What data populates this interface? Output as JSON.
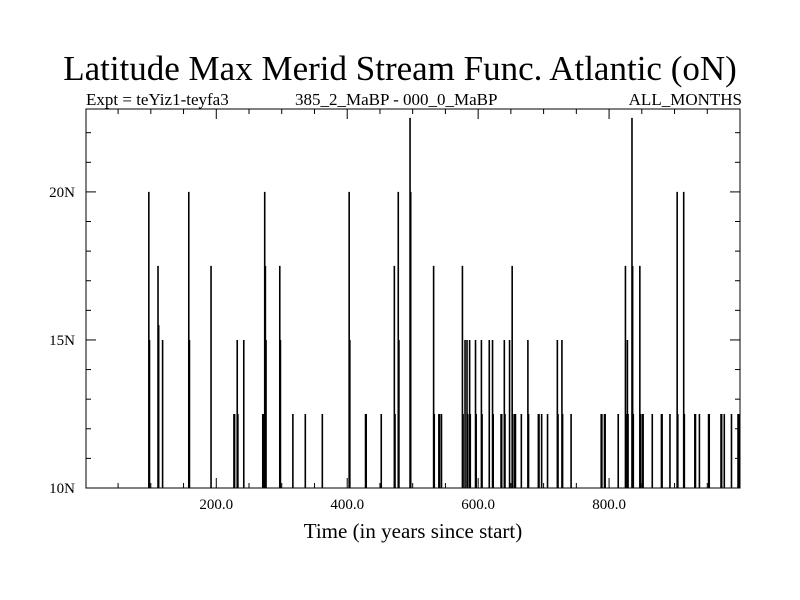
{
  "chart_data": {
    "type": "bar",
    "title": "Latitude Max Merid Stream Func. Atlantic (oN)",
    "subtitle_left": "Expt = teYiz1-teyfa3",
    "subtitle_center": "385_2_MaBP - 000_0_MaBP",
    "subtitle_right": "ALL_MONTHS",
    "xlabel": "Time (in years since start)",
    "ylabel": "",
    "xlim": [
      1,
      1000
    ],
    "ylim": [
      10,
      22.8
    ],
    "baseline": 10,
    "x_major_ticks": [
      200,
      400,
      600,
      800
    ],
    "x_tick_labels": [
      "200.0",
      "400.0",
      "600.0",
      "800.0"
    ],
    "y_major_ticks": [
      10,
      15,
      20
    ],
    "y_tick_labels": [
      "10N",
      "15N",
      "20N"
    ],
    "x_minor_step": 50,
    "y_minor_step": 1,
    "x": [
      97,
      98,
      111,
      112,
      118,
      158,
      159,
      192,
      227,
      228,
      232,
      233,
      242,
      271,
      272,
      274,
      275,
      276,
      297,
      298,
      317,
      336,
      362,
      403,
      404,
      428,
      429,
      452,
      472,
      473,
      478,
      479,
      496,
      497,
      532,
      533,
      540,
      541,
      544,
      576,
      577,
      580,
      583,
      584,
      587,
      588,
      596,
      597,
      605,
      606,
      617,
      622,
      623,
      635,
      636,
      640,
      641,
      648,
      652,
      653,
      656,
      657,
      666,
      676,
      677,
      692,
      693,
      697,
      706,
      721,
      722,
      728,
      729,
      742,
      788,
      789,
      793,
      794,
      814,
      825,
      826,
      828,
      829,
      835,
      836,
      837,
      847,
      848,
      851,
      852,
      866,
      880,
      881,
      893,
      904,
      905,
      914,
      915,
      931,
      932,
      938,
      952,
      953,
      971,
      972,
      976,
      987,
      997,
      998
    ],
    "values": [
      20,
      15,
      17.5,
      15.5,
      15,
      20,
      15,
      17.5,
      12.5,
      12.5,
      15,
      12.5,
      15,
      12.5,
      12.5,
      20,
      17.5,
      15,
      17.5,
      15,
      12.5,
      12.5,
      12.5,
      20,
      15,
      12.5,
      12.5,
      12.5,
      17.5,
      12.5,
      20,
      15,
      22.5,
      20,
      17.5,
      12.5,
      12.5,
      12.5,
      12.5,
      17.5,
      12.5,
      15,
      15,
      12.5,
      15,
      12.5,
      15,
      12.5,
      15,
      12.5,
      15,
      15,
      12.5,
      12.5,
      12.5,
      15,
      12.5,
      15,
      17.5,
      12.5,
      12.5,
      12.5,
      12.5,
      15,
      12.5,
      12.5,
      12.5,
      12.5,
      12.5,
      15,
      12.5,
      15,
      12.5,
      12.5,
      12.5,
      12.5,
      12.5,
      12.5,
      12.5,
      17.5,
      12.5,
      15,
      12.5,
      22.5,
      17.5,
      12.5,
      17.5,
      12.5,
      12.5,
      12.5,
      12.5,
      12.5,
      12.5,
      12.5,
      20,
      12.5,
      20,
      12.5,
      12.5,
      12.5,
      12.5,
      12.5,
      12.5,
      12.5,
      12.5,
      12.5,
      12.5,
      12.5,
      12.5
    ]
  }
}
